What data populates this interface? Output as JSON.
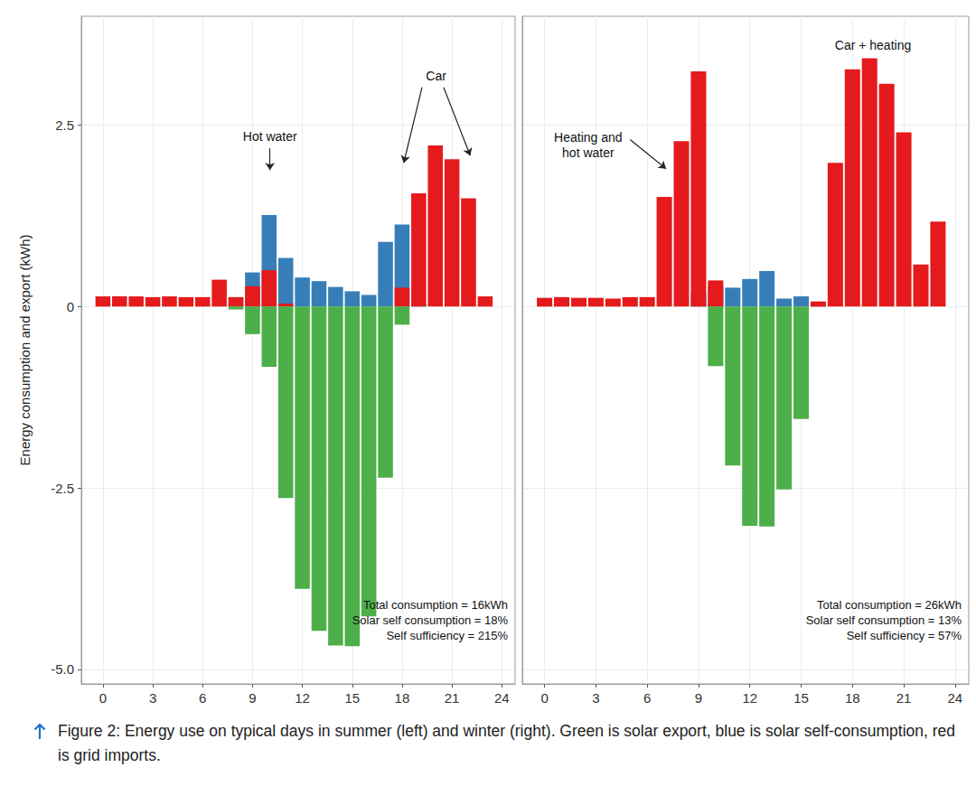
{
  "caption": "Figure 2: Energy use on typical days in summer (left) and winter (right). Green is solar export, blue is solar self-consumption, red is grid imports.",
  "chart_data": [
    {
      "type": "bar",
      "ylabel": "Energy consumption and export (kWh)",
      "x": [
        0,
        1,
        2,
        3,
        4,
        5,
        6,
        7,
        8,
        9,
        10,
        11,
        12,
        13,
        14,
        15,
        16,
        17,
        18,
        19,
        20,
        21,
        22,
        23
      ],
      "series": [
        {
          "name": "solar self-consumption",
          "color": "#377eb8",
          "values": [
            0,
            0,
            0,
            0,
            0,
            0,
            0,
            0,
            0.12,
            0.47,
            1.26,
            0.67,
            0.4,
            0.35,
            0.27,
            0.21,
            0.16,
            0.89,
            1.13,
            0.05,
            0,
            0,
            0,
            0
          ]
        },
        {
          "name": "grid imports",
          "color": "#e41a1c",
          "values": [
            0.14,
            0.14,
            0.14,
            0.13,
            0.14,
            0.13,
            0.13,
            0.37,
            0.13,
            0.28,
            0.5,
            0.04,
            0,
            0,
            0,
            0,
            0,
            0,
            0.26,
            1.56,
            2.22,
            2.03,
            1.49,
            0.14
          ]
        },
        {
          "name": "solar export",
          "color": "#4daf4a",
          "values": [
            0,
            0,
            0,
            0,
            0,
            0,
            0,
            0,
            -0.04,
            -0.38,
            -0.83,
            -2.64,
            -3.89,
            -4.47,
            -4.67,
            -4.68,
            -4.27,
            -2.36,
            -0.25,
            0,
            0,
            0,
            0,
            0
          ]
        }
      ],
      "stacked": true,
      "grid": true,
      "xlim": [
        -1.3,
        24.8
      ],
      "xticks": [
        0,
        3,
        6,
        9,
        12,
        15,
        18,
        21,
        24
      ],
      "ylim": [
        -5.2,
        4.0
      ],
      "yticks": [
        {
          "value": -5,
          "label": "-5.0"
        },
        -2.5,
        0,
        2.5
      ],
      "annotations": [
        {
          "text": "Hot water",
          "x": 10.05,
          "y": 2.35,
          "arrows": [
            {
              "from": [
                10.05,
                2.18
              ],
              "to": [
                10.05,
                1.88
              ]
            }
          ]
        },
        {
          "text": "Car",
          "x": 20.05,
          "y": 3.18,
          "arrows": [
            {
              "from": [
                19.2,
                3.02
              ],
              "to": [
                18.1,
                1.98
              ]
            },
            {
              "from": [
                20.5,
                3.02
              ],
              "to": [
                22.1,
                2.08
              ]
            }
          ]
        }
      ],
      "notes": [
        "Total consumption = 16kWh",
        "Solar self consumption = 18%",
        "Self sufficiency = 215%"
      ]
    },
    {
      "type": "bar",
      "x": [
        0,
        1,
        2,
        3,
        4,
        5,
        6,
        7,
        8,
        9,
        10,
        11,
        12,
        13,
        14,
        15,
        16,
        17,
        18,
        19,
        20,
        21,
        22,
        23
      ],
      "series": [
        {
          "name": "solar self-consumption",
          "color": "#377eb8",
          "values": [
            0,
            0,
            0,
            0,
            0,
            0,
            0,
            0,
            0,
            0.18,
            0.28,
            0.26,
            0.38,
            0.49,
            0.11,
            0.14,
            0.04,
            0,
            0,
            0,
            0,
            0,
            0,
            0
          ]
        },
        {
          "name": "grid imports",
          "color": "#e41a1c",
          "values": [
            0.12,
            0.13,
            0.12,
            0.12,
            0.11,
            0.13,
            0.13,
            1.51,
            2.28,
            3.24,
            0.36,
            0,
            0,
            0,
            0,
            0,
            0.07,
            1.98,
            3.27,
            3.42,
            3.07,
            2.4,
            0.58,
            1.17
          ]
        },
        {
          "name": "solar export",
          "color": "#4daf4a",
          "values": [
            0,
            0,
            0,
            0,
            0,
            0,
            0,
            0,
            0,
            0,
            -0.82,
            -2.19,
            -3.02,
            -3.03,
            -2.52,
            -1.55,
            0,
            0,
            0,
            0,
            0,
            0,
            0,
            0
          ]
        }
      ],
      "stacked": true,
      "grid": true,
      "tick_labels": "x",
      "xlim": [
        -1.3,
        24.8
      ],
      "xticks": [
        0,
        3,
        6,
        9,
        12,
        15,
        18,
        21,
        24
      ],
      "ylim": [
        -5.2,
        4.0
      ],
      "yticks": [
        {
          "value": -5,
          "label": "-5.0"
        },
        -2.5,
        0,
        2.5
      ],
      "annotations": [
        {
          "text": "Heating and\nhot water",
          "x": 2.55,
          "y": 2.22,
          "arrows": [
            {
              "from": [
                5.0,
                2.3
              ],
              "to": [
                7.1,
                1.9
              ]
            }
          ]
        },
        {
          "text": "Car + heating",
          "x": 19.2,
          "y": 3.6,
          "arrows": []
        }
      ],
      "notes": [
        "Total consumption = 26kWh",
        "Solar self consumption = 13%",
        "Self sufficiency = 57%"
      ]
    }
  ]
}
